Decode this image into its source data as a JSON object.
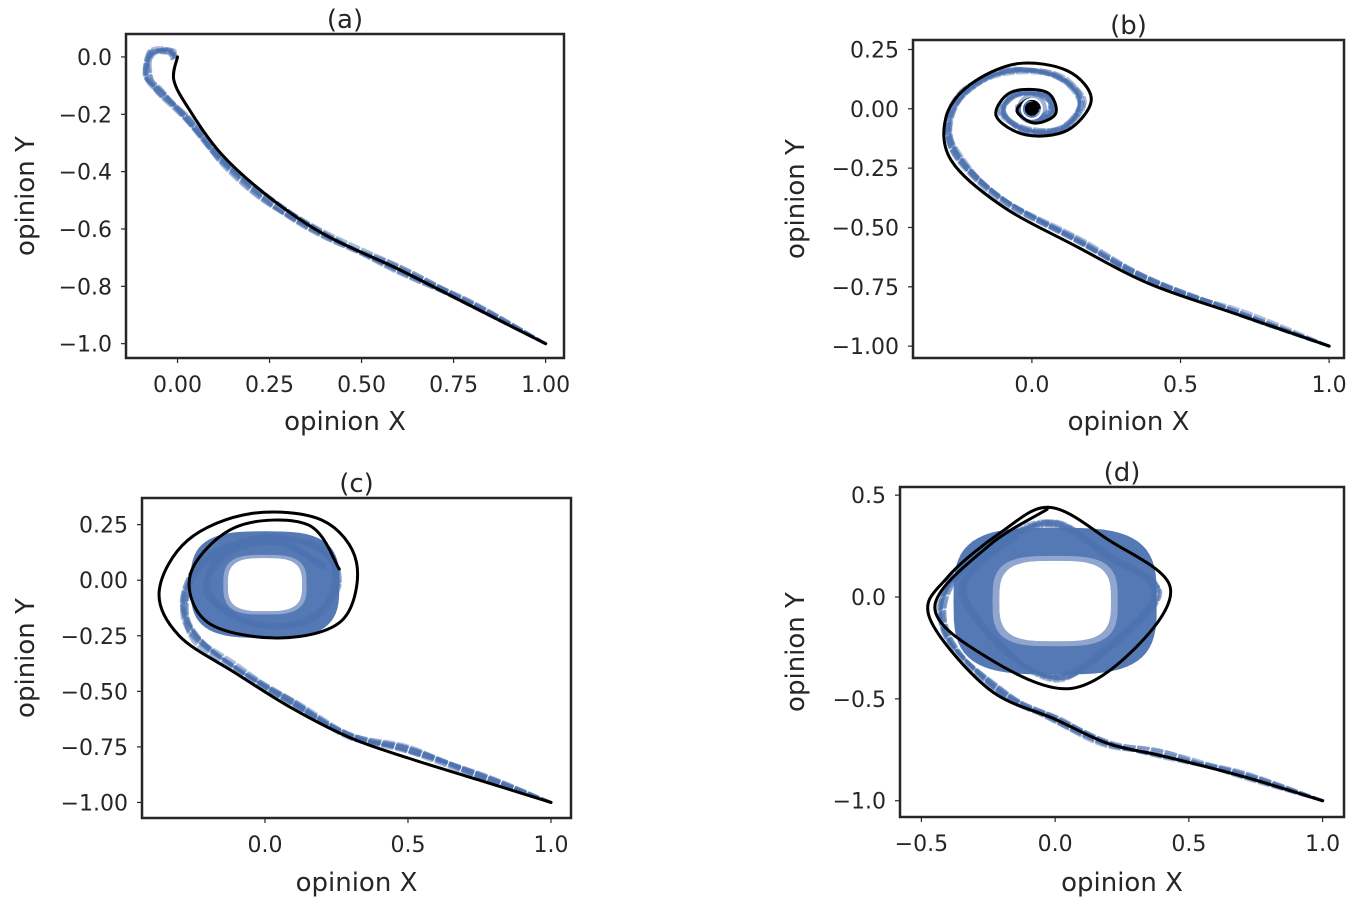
{
  "chart_data": [
    {
      "type": "line",
      "title": "(a)",
      "xlabel": "opinion X",
      "ylabel": "opinion Y",
      "xlim": [
        -0.14,
        1.05
      ],
      "ylim": [
        -1.05,
        0.08
      ],
      "xticks": [
        0.0,
        0.25,
        0.5,
        0.75,
        1.0
      ],
      "xticklabels": [
        "0.00",
        "0.25",
        "0.50",
        "0.75",
        "1.00"
      ],
      "yticks": [
        0.0,
        -0.2,
        -0.4,
        -0.6,
        -0.8,
        -1.0
      ],
      "yticklabels": [
        "0.0",
        "−0.2",
        "−0.4",
        "−0.6",
        "−0.8",
        "−1.0"
      ],
      "colors": {
        "samples": "#4c72b0",
        "mean": "#000000"
      },
      "series": [
        {
          "style": "dashed",
          "color": "#4c72b0",
          "points": [
            [
              1.0,
              -1.0
            ],
            [
              0.8,
              -0.86
            ],
            [
              0.6,
              -0.74
            ],
            [
              0.4,
              -0.62
            ],
            [
              0.25,
              -0.5
            ],
            [
              0.12,
              -0.36
            ],
            [
              0.03,
              -0.22
            ],
            [
              -0.05,
              -0.12
            ],
            [
              -0.08,
              -0.07
            ],
            [
              -0.07,
              0.01
            ],
            [
              -0.02,
              0.02
            ],
            [
              -0.01,
              0.0
            ]
          ]
        },
        {
          "style": "solid",
          "color": "#000000",
          "points": [
            [
              1.0,
              -1.0
            ],
            [
              0.8,
              -0.87
            ],
            [
              0.6,
              -0.74
            ],
            [
              0.4,
              -0.62
            ],
            [
              0.25,
              -0.49
            ],
            [
              0.12,
              -0.34
            ],
            [
              0.03,
              -0.18
            ],
            [
              -0.01,
              -0.08
            ],
            [
              0.0,
              0.0
            ]
          ]
        }
      ]
    },
    {
      "type": "line",
      "title": "(b)",
      "xlabel": "opinion X",
      "ylabel": "opinion Y",
      "xlim": [
        -0.4,
        1.05
      ],
      "ylim": [
        -1.05,
        0.29
      ],
      "xticks": [
        0.0,
        0.5,
        1.0
      ],
      "xticklabels": [
        "0.0",
        "0.5",
        "1.0"
      ],
      "yticks": [
        0.25,
        0.0,
        -0.25,
        -0.5,
        -0.75,
        -1.0
      ],
      "yticklabels": [
        "0.25",
        "0.00",
        "−0.25",
        "−0.50",
        "−0.75",
        "−1.00"
      ],
      "colors": {
        "samples": "#4c72b0",
        "mean": "#000000"
      },
      "series": [
        {
          "style": "dashed",
          "color": "#4c72b0",
          "points": [
            [
              1.0,
              -1.0
            ],
            [
              0.7,
              -0.86
            ],
            [
              0.4,
              -0.72
            ],
            [
              0.15,
              -0.55
            ],
            [
              -0.1,
              -0.38
            ],
            [
              -0.25,
              -0.2
            ],
            [
              -0.28,
              -0.05
            ],
            [
              -0.22,
              0.08
            ],
            [
              -0.08,
              0.16
            ],
            [
              0.08,
              0.14
            ],
            [
              0.17,
              0.03
            ],
            [
              0.1,
              -0.08
            ],
            [
              -0.02,
              -0.09
            ],
            [
              -0.1,
              -0.02
            ],
            [
              -0.05,
              0.06
            ],
            [
              0.05,
              0.05
            ],
            [
              0.06,
              -0.02
            ],
            [
              0.0,
              -0.04
            ],
            [
              -0.04,
              0.0
            ],
            [
              0.0,
              0.02
            ],
            [
              0.02,
              0.0
            ]
          ]
        },
        {
          "style": "solid",
          "color": "#000000",
          "points": [
            [
              1.0,
              -1.0
            ],
            [
              0.7,
              -0.87
            ],
            [
              0.4,
              -0.74
            ],
            [
              0.15,
              -0.58
            ],
            [
              -0.1,
              -0.41
            ],
            [
              -0.27,
              -0.22
            ],
            [
              -0.29,
              -0.04
            ],
            [
              -0.21,
              0.1
            ],
            [
              -0.05,
              0.19
            ],
            [
              0.12,
              0.16
            ],
            [
              0.2,
              0.04
            ],
            [
              0.12,
              -0.09
            ],
            [
              -0.02,
              -0.11
            ],
            [
              -0.12,
              -0.03
            ],
            [
              -0.07,
              0.07
            ],
            [
              0.05,
              0.07
            ],
            [
              0.08,
              -0.02
            ],
            [
              0.01,
              -0.06
            ],
            [
              -0.05,
              -0.01
            ],
            [
              -0.01,
              0.04
            ],
            [
              0.03,
              0.01
            ],
            [
              0.0,
              0.0
            ]
          ]
        }
      ]
    },
    {
      "type": "line",
      "title": "(c)",
      "xlabel": "opinion X",
      "ylabel": "opinion Y",
      "xlim": [
        -0.43,
        1.07
      ],
      "ylim": [
        -1.07,
        0.37
      ],
      "xticks": [
        0.0,
        0.5,
        1.0
      ],
      "xticklabels": [
        "0.0",
        "0.5",
        "1.0"
      ],
      "yticks": [
        0.25,
        0.0,
        -0.25,
        -0.5,
        -0.75,
        -1.0
      ],
      "yticklabels": [
        "0.25",
        "0.00",
        "−0.25",
        "−0.50",
        "−0.75",
        "−1.00"
      ],
      "colors": {
        "samples": "#4c72b0",
        "mean": "#000000"
      },
      "series": [
        {
          "style": "dashed",
          "color": "#4c72b0",
          "points": [
            [
              1.0,
              -1.0
            ],
            [
              0.75,
              -0.88
            ],
            [
              0.5,
              -0.76
            ],
            [
              0.3,
              -0.7
            ],
            [
              0.1,
              -0.55
            ],
            [
              -0.1,
              -0.4
            ],
            [
              -0.25,
              -0.25
            ],
            [
              -0.28,
              -0.08
            ],
            [
              -0.2,
              0.1
            ],
            [
              0.0,
              0.19
            ],
            [
              0.2,
              0.14
            ],
            [
              0.25,
              -0.02
            ],
            [
              0.15,
              -0.18
            ],
            [
              -0.05,
              -0.19
            ],
            [
              -0.2,
              -0.05
            ],
            [
              -0.14,
              0.12
            ],
            [
              0.05,
              0.17
            ],
            [
              0.2,
              0.06
            ]
          ]
        },
        {
          "style": "solid",
          "color": "#000000",
          "points": [
            [
              1.0,
              -1.0
            ],
            [
              0.75,
              -0.9
            ],
            [
              0.5,
              -0.8
            ],
            [
              0.3,
              -0.71
            ],
            [
              0.1,
              -0.58
            ],
            [
              -0.1,
              -0.42
            ],
            [
              -0.3,
              -0.25
            ],
            [
              -0.37,
              -0.05
            ],
            [
              -0.27,
              0.18
            ],
            [
              -0.05,
              0.3
            ],
            [
              0.2,
              0.27
            ],
            [
              0.32,
              0.08
            ],
            [
              0.27,
              -0.18
            ],
            [
              0.05,
              -0.26
            ],
            [
              -0.2,
              -0.19
            ],
            [
              -0.26,
              0.03
            ],
            [
              -0.1,
              0.24
            ],
            [
              0.15,
              0.25
            ],
            [
              0.26,
              0.05
            ]
          ]
        }
      ]
    },
    {
      "type": "line",
      "title": "(d)",
      "xlabel": "opinion X",
      "ylabel": "opinion Y",
      "xlim": [
        -0.58,
        1.08
      ],
      "ylim": [
        -1.08,
        0.54
      ],
      "xticks": [
        -0.5,
        0.0,
        0.5,
        1.0
      ],
      "xticklabels": [
        "−0.5",
        "0.0",
        "0.5",
        "1.0"
      ],
      "yticks": [
        0.5,
        0.0,
        -0.5,
        -1.0
      ],
      "yticklabels": [
        "0.5",
        "0.0",
        "−0.5",
        "−1.0"
      ],
      "colors": {
        "samples": "#4c72b0",
        "mean": "#000000"
      },
      "series": [
        {
          "style": "dashed",
          "color": "#4c72b0",
          "points": [
            [
              1.0,
              -1.0
            ],
            [
              0.7,
              -0.87
            ],
            [
              0.4,
              -0.77
            ],
            [
              0.2,
              -0.72
            ],
            [
              0.0,
              -0.6
            ],
            [
              -0.2,
              -0.47
            ],
            [
              -0.4,
              -0.2
            ],
            [
              -0.4,
              0.05
            ],
            [
              -0.2,
              0.28
            ],
            [
              0.0,
              0.36
            ],
            [
              0.2,
              0.2
            ],
            [
              0.38,
              0.02
            ],
            [
              0.2,
              -0.25
            ],
            [
              0.0,
              -0.4
            ],
            [
              -0.2,
              -0.25
            ],
            [
              -0.35,
              0.05
            ],
            [
              -0.15,
              0.3
            ]
          ]
        },
        {
          "style": "solid",
          "color": "#000000",
          "points": [
            [
              1.0,
              -1.0
            ],
            [
              0.7,
              -0.88
            ],
            [
              0.4,
              -0.78
            ],
            [
              0.2,
              -0.72
            ],
            [
              0.0,
              -0.6
            ],
            [
              -0.25,
              -0.45
            ],
            [
              -0.47,
              -0.1
            ],
            [
              -0.4,
              0.1
            ],
            [
              -0.2,
              0.32
            ],
            [
              -0.02,
              0.44
            ],
            [
              0.2,
              0.28
            ],
            [
              0.43,
              0.05
            ],
            [
              0.3,
              -0.25
            ],
            [
              0.05,
              -0.45
            ],
            [
              -0.25,
              -0.3
            ],
            [
              -0.45,
              -0.05
            ],
            [
              -0.25,
              0.25
            ],
            [
              -0.03,
              0.43
            ]
          ]
        }
      ]
    }
  ]
}
